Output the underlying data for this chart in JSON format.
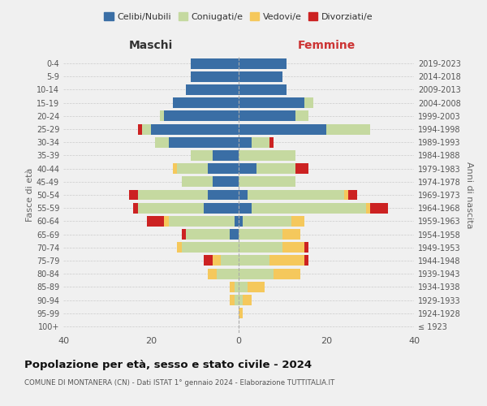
{
  "age_groups": [
    "100+",
    "95-99",
    "90-94",
    "85-89",
    "80-84",
    "75-79",
    "70-74",
    "65-69",
    "60-64",
    "55-59",
    "50-54",
    "45-49",
    "40-44",
    "35-39",
    "30-34",
    "25-29",
    "20-24",
    "15-19",
    "10-14",
    "5-9",
    "0-4"
  ],
  "birth_years": [
    "≤ 1923",
    "1924-1928",
    "1929-1933",
    "1934-1938",
    "1939-1943",
    "1944-1948",
    "1949-1953",
    "1954-1958",
    "1959-1963",
    "1964-1968",
    "1969-1973",
    "1974-1978",
    "1979-1983",
    "1984-1988",
    "1989-1993",
    "1994-1998",
    "1999-2003",
    "2004-2008",
    "2009-2013",
    "2014-2018",
    "2019-2023"
  ],
  "males": {
    "celibi": [
      0,
      0,
      0,
      0,
      0,
      0,
      0,
      2,
      1,
      8,
      7,
      6,
      7,
      6,
      16,
      20,
      17,
      15,
      12,
      11,
      11
    ],
    "coniugati": [
      0,
      0,
      1,
      1,
      5,
      4,
      13,
      10,
      15,
      15,
      16,
      7,
      7,
      5,
      3,
      2,
      1,
      0,
      0,
      0,
      0
    ],
    "vedovi": [
      0,
      0,
      1,
      1,
      2,
      2,
      1,
      0,
      1,
      0,
      0,
      0,
      1,
      0,
      0,
      0,
      0,
      0,
      0,
      0,
      0
    ],
    "divorziati": [
      0,
      0,
      0,
      0,
      0,
      2,
      0,
      1,
      4,
      1,
      2,
      0,
      0,
      0,
      0,
      1,
      0,
      0,
      0,
      0,
      0
    ]
  },
  "females": {
    "nubili": [
      0,
      0,
      0,
      0,
      0,
      0,
      0,
      0,
      1,
      3,
      2,
      0,
      4,
      0,
      3,
      20,
      13,
      15,
      11,
      10,
      11
    ],
    "coniugate": [
      0,
      0,
      1,
      2,
      8,
      7,
      10,
      10,
      11,
      26,
      22,
      13,
      9,
      13,
      4,
      10,
      3,
      2,
      0,
      0,
      0
    ],
    "vedove": [
      0,
      1,
      2,
      4,
      6,
      8,
      5,
      4,
      3,
      1,
      1,
      0,
      0,
      0,
      0,
      0,
      0,
      0,
      0,
      0,
      0
    ],
    "divorziate": [
      0,
      0,
      0,
      0,
      0,
      1,
      1,
      0,
      0,
      4,
      2,
      0,
      3,
      0,
      1,
      0,
      0,
      0,
      0,
      0,
      0
    ]
  },
  "colors": {
    "celibi": "#3a6ea5",
    "coniugati": "#c5d9a0",
    "vedovi": "#f5c85c",
    "divorziati": "#cc2222"
  },
  "title": "Popolazione per età, sesso e stato civile - 2024",
  "subtitle": "COMUNE DI MONTANERA (CN) - Dati ISTAT 1° gennaio 2024 - Elaborazione TUTTITALIA.IT",
  "xlabel_left": "Maschi",
  "xlabel_right": "Femmine",
  "ylabel_left": "Fasce di età",
  "ylabel_right": "Anni di nascita",
  "xlim": 40,
  "legend_labels": [
    "Celibi/Nubili",
    "Coniugati/e",
    "Vedovi/e",
    "Divorziati/e"
  ],
  "bg_color": "#f0f0f0"
}
